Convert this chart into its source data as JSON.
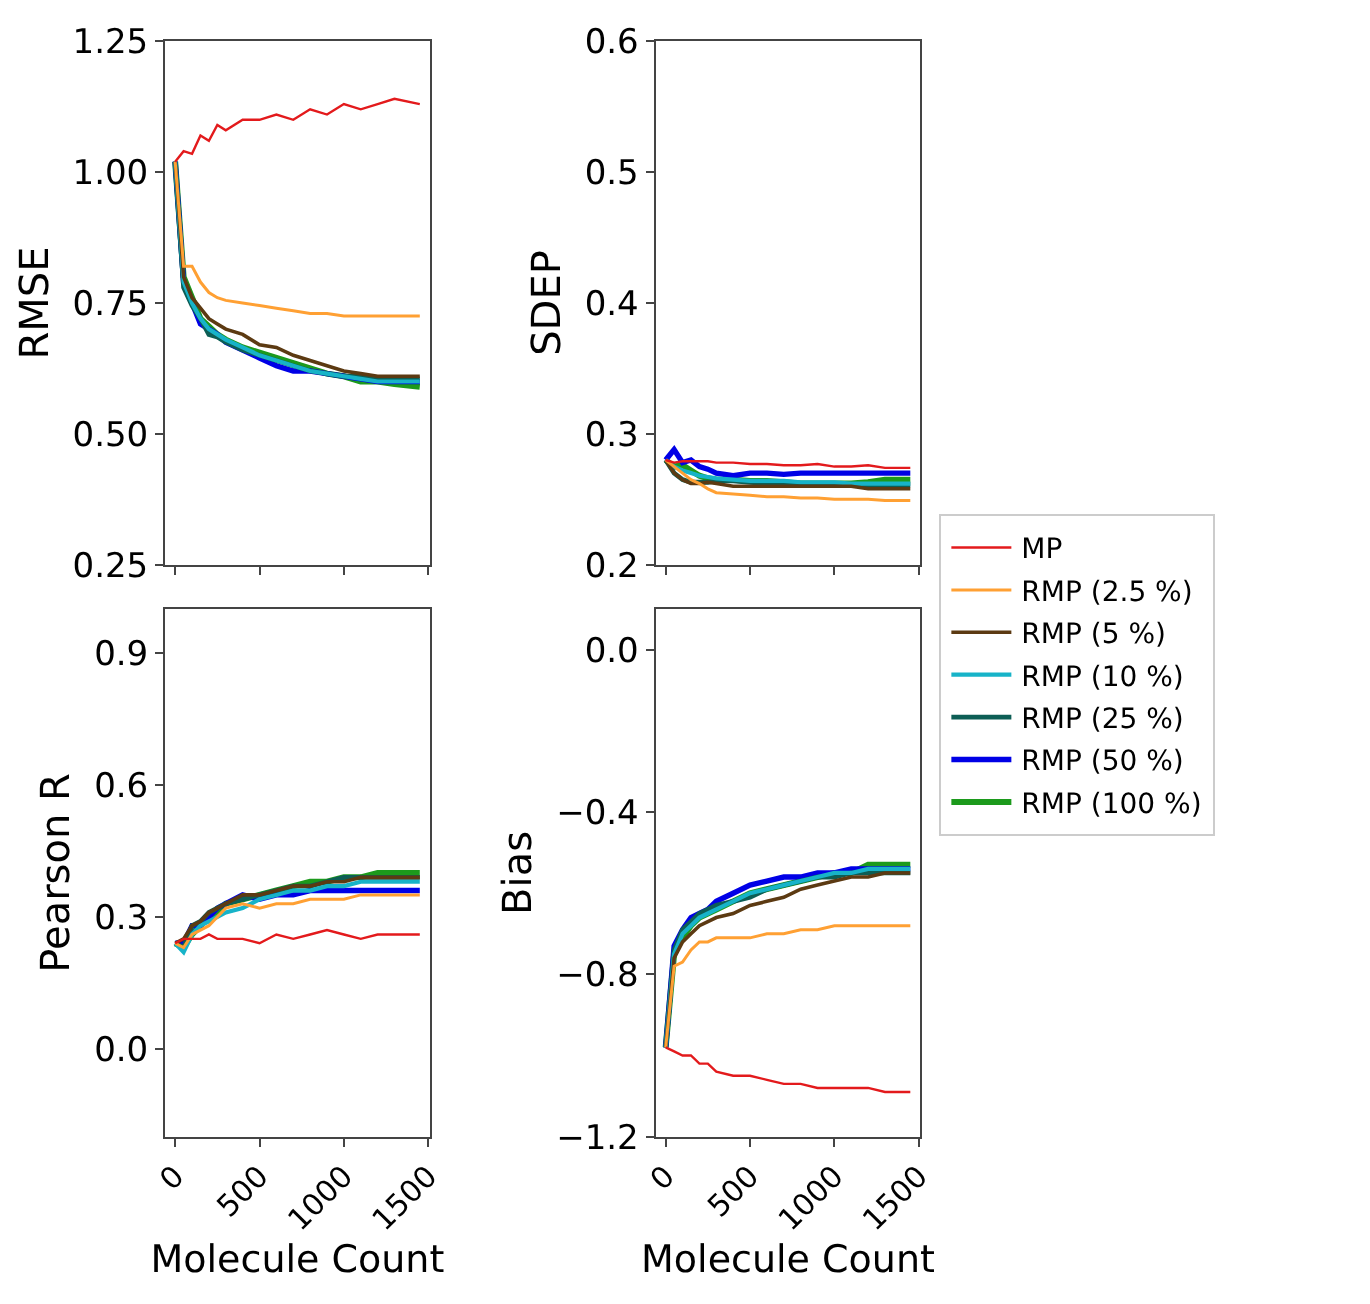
{
  "chart_data": [
    {
      "type": "line",
      "ylabel": "RMSE",
      "x": [
        0,
        50,
        100,
        150,
        200,
        250,
        300,
        400,
        500,
        600,
        700,
        800,
        900,
        1000,
        1100,
        1200,
        1300,
        1450
      ],
      "xlim": [
        -60,
        1510
      ],
      "xticks": [
        0,
        500,
        1000,
        1500
      ],
      "ylim": [
        0.25,
        1.25
      ],
      "yticks": [
        0.25,
        {
          "value": 0.5,
          "label": "0.50"
        },
        0.75,
        {
          "value": 1.0,
          "label": "1.00"
        },
        1.25
      ],
      "tick_labels": "y",
      "legend": "right",
      "grid": false,
      "series": [
        {
          "name": "MP",
          "color": "#e31a1c",
          "values": [
            1.02,
            1.04,
            1.035,
            1.07,
            1.06,
            1.09,
            1.08,
            1.1,
            1.1,
            1.11,
            1.1,
            1.12,
            1.11,
            1.13,
            1.12,
            1.13,
            1.14,
            1.13
          ]
        },
        {
          "name": "RMP (2.5 %)",
          "color": "#ffa033",
          "values": [
            1.02,
            0.82,
            0.82,
            0.79,
            0.77,
            0.76,
            0.755,
            0.75,
            0.745,
            0.74,
            0.735,
            0.73,
            0.73,
            0.725,
            0.725,
            0.725,
            0.725,
            0.725
          ]
        },
        {
          "name": "RMP (5 %)",
          "color": "#5c3a12",
          "values": [
            1.02,
            0.8,
            0.76,
            0.74,
            0.72,
            0.71,
            0.7,
            0.69,
            0.67,
            0.665,
            0.65,
            0.64,
            0.63,
            0.62,
            0.615,
            0.61,
            0.61,
            0.61
          ]
        },
        {
          "name": "RMP (10 %)",
          "color": "#17b3c8",
          "values": [
            1.02,
            0.79,
            0.75,
            0.72,
            0.7,
            0.69,
            0.68,
            0.665,
            0.65,
            0.64,
            0.63,
            0.62,
            0.615,
            0.61,
            0.605,
            0.6,
            0.6,
            0.6
          ]
        },
        {
          "name": "RMP (25 %)",
          "color": "#0d5e55",
          "values": [
            1.02,
            0.78,
            0.745,
            0.72,
            0.69,
            0.685,
            0.675,
            0.66,
            0.65,
            0.64,
            0.63,
            0.62,
            0.615,
            0.61,
            0.61,
            0.605,
            0.605,
            0.605
          ]
        },
        {
          "name": "RMP (50 %)",
          "color": "#0000e6",
          "values": [
            1.02,
            0.79,
            0.75,
            0.71,
            0.7,
            0.69,
            0.675,
            0.66,
            0.645,
            0.63,
            0.62,
            0.62,
            0.615,
            0.61,
            0.605,
            0.6,
            0.6,
            0.6
          ]
        },
        {
          "name": "RMP (100 %)",
          "color": "#1c9a1c",
          "values": [
            1.02,
            0.8,
            0.76,
            0.72,
            0.705,
            0.69,
            0.68,
            0.665,
            0.655,
            0.645,
            0.635,
            0.625,
            0.615,
            0.61,
            0.6,
            0.6,
            0.595,
            0.59
          ]
        }
      ]
    },
    {
      "type": "line",
      "ylabel": "SDEP",
      "x": [
        0,
        50,
        100,
        150,
        200,
        250,
        300,
        400,
        500,
        600,
        700,
        800,
        900,
        1000,
        1100,
        1200,
        1300,
        1450
      ],
      "xlim": [
        -60,
        1510
      ],
      "xticks": [
        0,
        500,
        1000,
        1500
      ],
      "ylim": [
        0.2,
        0.6
      ],
      "yticks": [
        0.2,
        0.3,
        0.4,
        0.5,
        0.6
      ],
      "tick_labels": "y",
      "grid": false,
      "series": [
        {
          "color": "#e31a1c",
          "values": [
            0.28,
            0.278,
            0.279,
            0.279,
            0.279,
            0.279,
            0.278,
            0.278,
            0.277,
            0.277,
            0.276,
            0.276,
            0.277,
            0.275,
            0.275,
            0.276,
            0.274,
            0.274
          ]
        },
        {
          "color": "#ffa033",
          "values": [
            0.28,
            0.275,
            0.27,
            0.265,
            0.262,
            0.258,
            0.255,
            0.254,
            0.253,
            0.252,
            0.252,
            0.251,
            0.251,
            0.25,
            0.25,
            0.25,
            0.249,
            0.249
          ]
        },
        {
          "color": "#5c3a12",
          "values": [
            0.28,
            0.27,
            0.265,
            0.262,
            0.262,
            0.263,
            0.262,
            0.26,
            0.26,
            0.26,
            0.26,
            0.26,
            0.26,
            0.26,
            0.26,
            0.258,
            0.258,
            0.258
          ]
        },
        {
          "color": "#17b3c8",
          "values": [
            0.28,
            0.275,
            0.272,
            0.27,
            0.268,
            0.267,
            0.266,
            0.265,
            0.264,
            0.264,
            0.264,
            0.263,
            0.263,
            0.263,
            0.262,
            0.262,
            0.262,
            0.262
          ]
        },
        {
          "color": "#0d5e55",
          "values": [
            0.28,
            0.27,
            0.265,
            0.263,
            0.263,
            0.263,
            0.264,
            0.264,
            0.263,
            0.262,
            0.262,
            0.262,
            0.261,
            0.261,
            0.261,
            0.261,
            0.261,
            0.261
          ]
        },
        {
          "color": "#0000e6",
          "values": [
            0.28,
            0.288,
            0.278,
            0.28,
            0.275,
            0.273,
            0.27,
            0.268,
            0.27,
            0.27,
            0.269,
            0.27,
            0.27,
            0.27,
            0.27,
            0.27,
            0.27,
            0.27
          ]
        },
        {
          "color": "#1c9a1c",
          "values": [
            0.28,
            0.275,
            0.276,
            0.272,
            0.268,
            0.266,
            0.265,
            0.265,
            0.264,
            0.264,
            0.263,
            0.262,
            0.262,
            0.262,
            0.262,
            0.263,
            0.265,
            0.265
          ]
        }
      ]
    },
    {
      "type": "line",
      "ylabel": "Pearson R",
      "xlabel": "Molecule Count",
      "x": [
        0,
        50,
        100,
        150,
        200,
        250,
        300,
        400,
        500,
        600,
        700,
        800,
        900,
        1000,
        1100,
        1200,
        1300,
        1450
      ],
      "xlim": [
        -60,
        1510
      ],
      "xticks": [
        0,
        500,
        1000,
        1500
      ],
      "ylim": [
        -0.2,
        1.0
      ],
      "yticks": [
        {
          "value": 0.0,
          "label": "0.0"
        },
        0.3,
        0.6,
        0.9
      ],
      "grid": false,
      "series": [
        {
          "color": "#e31a1c",
          "values": [
            0.24,
            0.25,
            0.25,
            0.25,
            0.26,
            0.25,
            0.25,
            0.25,
            0.24,
            0.26,
            0.25,
            0.26,
            0.27,
            0.26,
            0.25,
            0.26,
            0.26,
            0.26
          ]
        },
        {
          "color": "#ffa033",
          "values": [
            0.24,
            0.23,
            0.26,
            0.27,
            0.28,
            0.3,
            0.32,
            0.33,
            0.32,
            0.33,
            0.33,
            0.34,
            0.34,
            0.34,
            0.35,
            0.35,
            0.35,
            0.35
          ]
        },
        {
          "color": "#5c3a12",
          "values": [
            0.24,
            0.25,
            0.28,
            0.29,
            0.31,
            0.32,
            0.33,
            0.35,
            0.35,
            0.36,
            0.37,
            0.37,
            0.38,
            0.38,
            0.39,
            0.39,
            0.39,
            0.39
          ]
        },
        {
          "color": "#17b3c8",
          "values": [
            0.24,
            0.22,
            0.26,
            0.28,
            0.29,
            0.3,
            0.31,
            0.32,
            0.34,
            0.35,
            0.36,
            0.36,
            0.37,
            0.37,
            0.38,
            0.38,
            0.38,
            0.38
          ]
        },
        {
          "color": "#0d5e55",
          "values": [
            0.24,
            0.23,
            0.28,
            0.29,
            0.31,
            0.32,
            0.33,
            0.34,
            0.35,
            0.36,
            0.37,
            0.37,
            0.38,
            0.39,
            0.39,
            0.39,
            0.39,
            0.39
          ]
        },
        {
          "color": "#0000e6",
          "values": [
            0.24,
            0.24,
            0.28,
            0.28,
            0.3,
            0.32,
            0.33,
            0.35,
            0.34,
            0.35,
            0.35,
            0.36,
            0.36,
            0.36,
            0.36,
            0.36,
            0.36,
            0.36
          ]
        },
        {
          "color": "#1c9a1c",
          "values": [
            0.24,
            0.23,
            0.26,
            0.28,
            0.3,
            0.31,
            0.33,
            0.34,
            0.35,
            0.36,
            0.37,
            0.38,
            0.38,
            0.39,
            0.39,
            0.4,
            0.4,
            0.4
          ]
        }
      ]
    },
    {
      "type": "line",
      "ylabel": "Bias",
      "xlabel": "Molecule Count",
      "x": [
        0,
        50,
        100,
        150,
        200,
        250,
        300,
        400,
        500,
        600,
        700,
        800,
        900,
        1000,
        1100,
        1200,
        1300,
        1450
      ],
      "xlim": [
        -60,
        1510
      ],
      "xticks": [
        0,
        500,
        1000,
        1500
      ],
      "ylim": [
        -1.2,
        0.1
      ],
      "yticks": [
        {
          "value": -1.2,
          "label": "−1.2"
        },
        {
          "value": -0.8,
          "label": "−0.8"
        },
        {
          "value": -0.4,
          "label": "−0.4"
        },
        {
          "value": 0.0,
          "label": "0.0"
        }
      ],
      "grid": false,
      "series": [
        {
          "color": "#e31a1c",
          "values": [
            -0.98,
            -0.99,
            -1.0,
            -1.0,
            -1.02,
            -1.02,
            -1.04,
            -1.05,
            -1.05,
            -1.06,
            -1.07,
            -1.07,
            -1.08,
            -1.08,
            -1.08,
            -1.08,
            -1.09,
            -1.09
          ]
        },
        {
          "color": "#ffa033",
          "values": [
            -0.98,
            -0.78,
            -0.77,
            -0.74,
            -0.72,
            -0.72,
            -0.71,
            -0.71,
            -0.71,
            -0.7,
            -0.7,
            -0.69,
            -0.69,
            -0.68,
            -0.68,
            -0.68,
            -0.68,
            -0.68
          ]
        },
        {
          "color": "#5c3a12",
          "values": [
            -0.98,
            -0.76,
            -0.72,
            -0.7,
            -0.68,
            -0.67,
            -0.66,
            -0.65,
            -0.63,
            -0.62,
            -0.61,
            -0.59,
            -0.58,
            -0.57,
            -0.56,
            -0.56,
            -0.55,
            -0.55
          ]
        },
        {
          "color": "#17b3c8",
          "values": [
            -0.98,
            -0.75,
            -0.7,
            -0.68,
            -0.66,
            -0.65,
            -0.64,
            -0.62,
            -0.6,
            -0.59,
            -0.58,
            -0.57,
            -0.56,
            -0.55,
            -0.55,
            -0.54,
            -0.54,
            -0.54
          ]
        },
        {
          "color": "#0d5e55",
          "values": [
            -0.98,
            -0.74,
            -0.69,
            -0.67,
            -0.65,
            -0.64,
            -0.63,
            -0.62,
            -0.61,
            -0.59,
            -0.58,
            -0.57,
            -0.56,
            -0.56,
            -0.55,
            -0.55,
            -0.55,
            -0.55
          ]
        },
        {
          "color": "#0000e6",
          "values": [
            -0.98,
            -0.73,
            -0.69,
            -0.66,
            -0.65,
            -0.64,
            -0.62,
            -0.6,
            -0.58,
            -0.57,
            -0.56,
            -0.56,
            -0.55,
            -0.55,
            -0.54,
            -0.54,
            -0.54,
            -0.54
          ]
        },
        {
          "color": "#1c9a1c",
          "values": [
            -0.98,
            -0.75,
            -0.71,
            -0.68,
            -0.66,
            -0.65,
            -0.64,
            -0.62,
            -0.6,
            -0.59,
            -0.58,
            -0.57,
            -0.56,
            -0.55,
            -0.55,
            -0.53,
            -0.53,
            -0.53
          ]
        }
      ]
    }
  ]
}
